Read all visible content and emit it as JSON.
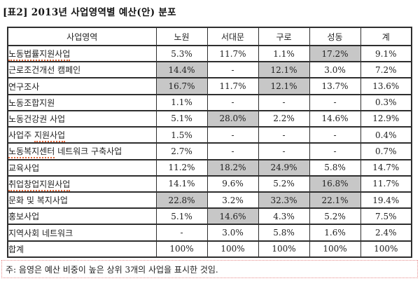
{
  "title": "[표2] 2013년 사업영역별 예산(안) 분포",
  "note": "주: 음영은 예산 비중이 높은 상위 3개의 사업을 표시한 것임.",
  "colors": {
    "shaded_cell": "#c7c7c7",
    "table_border": "#2e2e2e",
    "misspell_underline": "#e2693c",
    "note_border": "#e68a8a"
  },
  "table": {
    "columns": [
      "사업영역",
      "노원",
      "서대문",
      "구로",
      "성동",
      "계"
    ],
    "rows": [
      {
        "label_parts": [
          {
            "text": "노동법률지원사업",
            "misspelled": true
          }
        ],
        "cells": [
          {
            "value": "5.3%",
            "shaded": false
          },
          {
            "value": "11.7%",
            "shaded": false
          },
          {
            "value": "1.1%",
            "shaded": false
          },
          {
            "value": "17.2%",
            "shaded": true
          },
          {
            "value": "9.1%",
            "shaded": false
          }
        ]
      },
      {
        "label_parts": [
          {
            "text": "근로조건개선 캠페인",
            "misspelled": false
          }
        ],
        "cells": [
          {
            "value": "14.4%",
            "shaded": true
          },
          {
            "value": "-",
            "shaded": false
          },
          {
            "value": "12.1%",
            "shaded": true
          },
          {
            "value": "3.0%",
            "shaded": false
          },
          {
            "value": "7.2%",
            "shaded": false
          }
        ]
      },
      {
        "label_parts": [
          {
            "text": "연구조사",
            "misspelled": false
          }
        ],
        "cells": [
          {
            "value": "16.7%",
            "shaded": true
          },
          {
            "value": "11.7%",
            "shaded": false
          },
          {
            "value": "12.1%",
            "shaded": true
          },
          {
            "value": "13.7%",
            "shaded": false
          },
          {
            "value": "13.6%",
            "shaded": false
          }
        ]
      },
      {
        "label_parts": [
          {
            "text": "노동조합지원",
            "misspelled": false
          }
        ],
        "cells": [
          {
            "value": "1.1%",
            "shaded": false
          },
          {
            "value": "-",
            "shaded": false
          },
          {
            "value": "-",
            "shaded": false
          },
          {
            "value": "-",
            "shaded": false
          },
          {
            "value": "0.3%",
            "shaded": false
          }
        ]
      },
      {
        "label_parts": [
          {
            "text": "노동건강권 사업",
            "misspelled": false
          }
        ],
        "cells": [
          {
            "value": "5.1%",
            "shaded": false
          },
          {
            "value": "28.0%",
            "shaded": true
          },
          {
            "value": "2.2%",
            "shaded": false
          },
          {
            "value": "14.6%",
            "shaded": false
          },
          {
            "value": "12.9%",
            "shaded": false
          }
        ]
      },
      {
        "label_parts": [
          {
            "text": "사업주 ",
            "misspelled": false
          },
          {
            "text": "지원사업",
            "misspelled": true
          }
        ],
        "cells": [
          {
            "value": "1.5%",
            "shaded": false
          },
          {
            "value": "-",
            "shaded": false
          },
          {
            "value": "-",
            "shaded": false
          },
          {
            "value": "-",
            "shaded": false
          },
          {
            "value": "0.4%",
            "shaded": false
          }
        ]
      },
      {
        "label_parts": [
          {
            "text": "노동복지센터",
            "misspelled": true
          },
          {
            "text": " 네트워크 구축사업",
            "misspelled": false
          }
        ],
        "cells": [
          {
            "value": "2.7%",
            "shaded": false
          },
          {
            "value": "-",
            "shaded": false
          },
          {
            "value": "-",
            "shaded": false
          },
          {
            "value": "-",
            "shaded": false
          },
          {
            "value": "0.7%",
            "shaded": false
          }
        ]
      },
      {
        "label_parts": [
          {
            "text": "교육사업",
            "misspelled": false
          }
        ],
        "cells": [
          {
            "value": "11.2%",
            "shaded": false
          },
          {
            "value": "18.2%",
            "shaded": true
          },
          {
            "value": "24.9%",
            "shaded": true
          },
          {
            "value": "5.8%",
            "shaded": false
          },
          {
            "value": "14.7%",
            "shaded": false
          }
        ]
      },
      {
        "label_parts": [
          {
            "text": "취업창업지원사업",
            "misspelled": true
          }
        ],
        "cells": [
          {
            "value": "14.1%",
            "shaded": false
          },
          {
            "value": "9.6%",
            "shaded": false
          },
          {
            "value": "5.2%",
            "shaded": false
          },
          {
            "value": "16.8%",
            "shaded": true
          },
          {
            "value": "11.7%",
            "shaded": false
          }
        ]
      },
      {
        "label_parts": [
          {
            "text": "문화 및 복지사업",
            "misspelled": false
          }
        ],
        "cells": [
          {
            "value": "22.8%",
            "shaded": true
          },
          {
            "value": "3.2%",
            "shaded": false
          },
          {
            "value": "32.3%",
            "shaded": true
          },
          {
            "value": "22.1%",
            "shaded": true
          },
          {
            "value": "19.4%",
            "shaded": false
          }
        ]
      },
      {
        "label_parts": [
          {
            "text": "홍보사업",
            "misspelled": false
          }
        ],
        "cells": [
          {
            "value": "5.1%",
            "shaded": false
          },
          {
            "value": "14.6%",
            "shaded": true
          },
          {
            "value": "4.3%",
            "shaded": false
          },
          {
            "value": "5.2%",
            "shaded": false
          },
          {
            "value": "7.5%",
            "shaded": false
          }
        ]
      },
      {
        "label_parts": [
          {
            "text": "지역사회 네트워크",
            "misspelled": false
          }
        ],
        "cells": [
          {
            "value": "-",
            "shaded": false
          },
          {
            "value": "3.0%",
            "shaded": false
          },
          {
            "value": "5.8%",
            "shaded": false
          },
          {
            "value": "1.6%",
            "shaded": false
          },
          {
            "value": "2.4%",
            "shaded": false
          }
        ]
      },
      {
        "label_parts": [
          {
            "text": "합계",
            "misspelled": false
          }
        ],
        "cells": [
          {
            "value": "100%",
            "shaded": false
          },
          {
            "value": "100%",
            "shaded": false
          },
          {
            "value": "100%",
            "shaded": false
          },
          {
            "value": "100%",
            "shaded": false
          },
          {
            "value": "100%",
            "shaded": false
          }
        ]
      }
    ]
  }
}
